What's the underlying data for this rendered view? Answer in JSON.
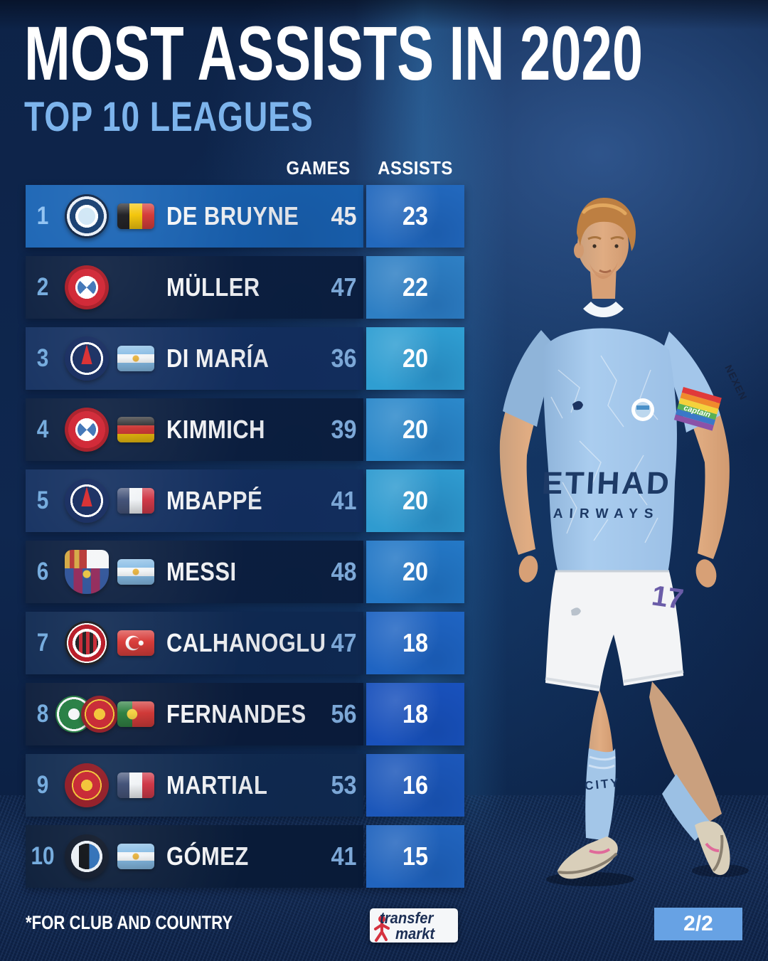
{
  "header": {
    "title": "MOST ASSISTS IN 2020",
    "subtitle": "TOP 10 LEAGUES"
  },
  "table": {
    "columns": {
      "games": "GAMES",
      "assists": "ASSISTS"
    },
    "rows": [
      {
        "rank": "1",
        "clubs": [
          "manchester-city"
        ],
        "flag": "belgium",
        "player": "DE BRUYNE",
        "games": "45",
        "assists": "23",
        "band_color": "#1a64b4",
        "cell_color": "#2268bd",
        "rank_color": "#8fc2f2",
        "games_color": "#ffffff"
      },
      {
        "rank": "2",
        "clubs": [
          "bayern-munich"
        ],
        "flag": null,
        "player": "MÜLLER",
        "games": "47",
        "assists": "22",
        "band_color": "#0c1f3f",
        "cell_color": "#2e7fc4",
        "rank_color": "#71a9dd",
        "games_color": "#8ab8e8"
      },
      {
        "rank": "3",
        "clubs": [
          "psg"
        ],
        "flag": "argentina",
        "player": "DI MARÍA",
        "games": "36",
        "assists": "20",
        "band_color": "#143060",
        "cell_color": "#2f9ed2",
        "rank_color": "#71a9dd",
        "games_color": "#8ab8e8"
      },
      {
        "rank": "4",
        "clubs": [
          "bayern-munich"
        ],
        "flag": "germany",
        "player": "KIMMICH",
        "games": "39",
        "assists": "20",
        "band_color": "#0c1f3f",
        "cell_color": "#2b88ca",
        "rank_color": "#71a9dd",
        "games_color": "#8ab8e8"
      },
      {
        "rank": "5",
        "clubs": [
          "psg"
        ],
        "flag": "france",
        "player": "MBAPPÉ",
        "games": "41",
        "assists": "20",
        "band_color": "#143060",
        "cell_color": "#2f9bd0",
        "rank_color": "#71a9dd",
        "games_color": "#8ab8e8"
      },
      {
        "rank": "6",
        "clubs": [
          "barcelona"
        ],
        "flag": "argentina",
        "player": "MESSI",
        "games": "48",
        "assists": "20",
        "band_color": "#0c1f3f",
        "cell_color": "#2478c6",
        "rank_color": "#71a9dd",
        "games_color": "#8ab8e8"
      },
      {
        "rank": "7",
        "clubs": [
          "ac-milan"
        ],
        "flag": "turkey",
        "player": "CALHANOGLU",
        "games": "47",
        "assists": "18",
        "band_color": "#102a52",
        "cell_color": "#1f64c2",
        "rank_color": "#71a9dd",
        "games_color": "#8ab8e8"
      },
      {
        "rank": "8",
        "clubs": [
          "sporting",
          "man-utd"
        ],
        "flag": "portugal",
        "player": "FERNANDES",
        "games": "56",
        "assists": "18",
        "band_color": "#0b1c3a",
        "cell_color": "#1951bc",
        "rank_color": "#71a9dd",
        "games_color": "#8ab8e8"
      },
      {
        "rank": "9",
        "clubs": [
          "man-utd"
        ],
        "flag": "france",
        "player": "MARTIAL",
        "games": "53",
        "assists": "16",
        "band_color": "#112b50",
        "cell_color": "#1c57ba",
        "rank_color": "#71a9dd",
        "games_color": "#8ab8e8"
      },
      {
        "rank": "10",
        "clubs": [
          "atalanta"
        ],
        "flag": "argentina",
        "player": "GÓMEZ",
        "games": "41",
        "assists": "15",
        "band_color": "#0a1c38",
        "cell_color": "#2164be",
        "rank_color": "#71a9dd",
        "games_color": "#8ab8e8"
      }
    ]
  },
  "player_photo": {
    "jersey_sponsor_line1": "ETIHAD",
    "jersey_sponsor_line2": "AIRWAYS",
    "shirt_number": "17",
    "armband_text": "captain",
    "sleeve_text": "NEXEN",
    "sock_text": "CITY"
  },
  "footer": {
    "footnote": "*FOR CLUB AND COUNTRY",
    "brand_line1": "transfer",
    "brand_line2": "markt",
    "page_indicator": "2/2"
  },
  "colors": {
    "background": "#0d2348",
    "title": "#ffffff",
    "subtitle": "#7db4ec",
    "highlight_row": "#1a64b4",
    "page_badge": "#67a2e4",
    "brand_red": "#d5323f",
    "brand_navy": "#1c2f55"
  }
}
